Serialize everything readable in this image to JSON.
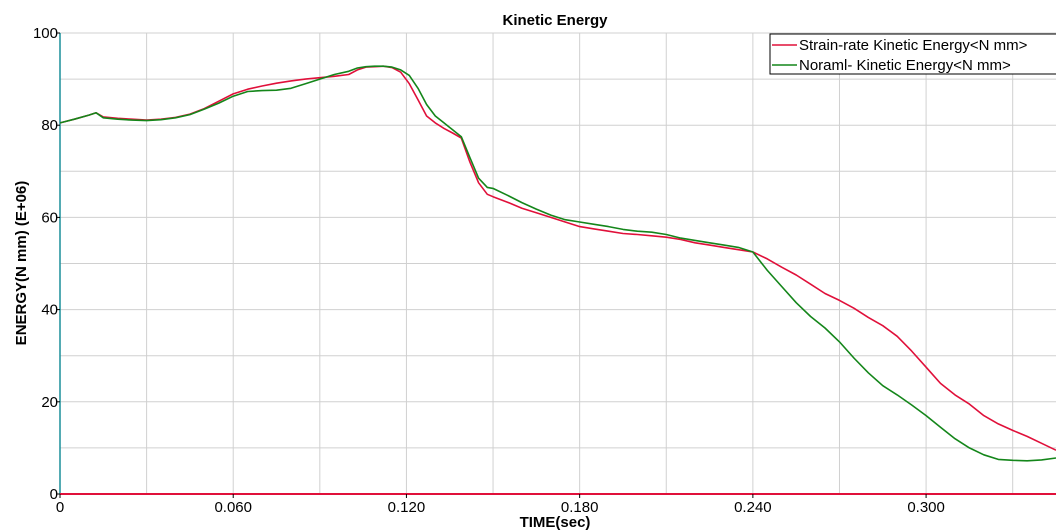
{
  "chart_data": {
    "type": "line",
    "title": "Kinetic Energy",
    "xlabel": "TIME(sec)",
    "ylabel": "ENERGY(N mm) (E+06)",
    "xlim": [
      0,
      0.345
    ],
    "ylim": [
      0,
      100
    ],
    "x_ticks": [
      0,
      0.06,
      0.12,
      0.18,
      0.24,
      0.3
    ],
    "x_tick_labels": [
      "0",
      "0.060",
      "0.120",
      "0.180",
      "0.240",
      "0.300"
    ],
    "y_ticks": [
      0,
      20,
      40,
      60,
      80,
      100
    ],
    "y_tick_labels": [
      "0",
      "20",
      "40",
      "60",
      "80",
      "100"
    ],
    "grid": true,
    "legend_position": "top-right",
    "series": [
      {
        "name": "Strain-rate Kinetic Energy<N mm>",
        "color": "#e0103a",
        "x": [
          0,
          0.005,
          0.01,
          0.0125,
          0.015,
          0.02,
          0.025,
          0.03,
          0.035,
          0.04,
          0.045,
          0.05,
          0.055,
          0.06,
          0.065,
          0.07,
          0.075,
          0.08,
          0.085,
          0.09,
          0.095,
          0.1,
          0.103,
          0.106,
          0.109,
          0.112,
          0.115,
          0.118,
          0.121,
          0.124,
          0.127,
          0.13,
          0.133,
          0.136,
          0.139,
          0.142,
          0.145,
          0.148,
          0.15,
          0.155,
          0.16,
          0.165,
          0.17,
          0.175,
          0.18,
          0.185,
          0.19,
          0.195,
          0.2,
          0.205,
          0.21,
          0.215,
          0.22,
          0.225,
          0.23,
          0.235,
          0.24,
          0.245,
          0.25,
          0.255,
          0.26,
          0.265,
          0.27,
          0.275,
          0.28,
          0.285,
          0.29,
          0.295,
          0.3,
          0.305,
          0.31,
          0.315,
          0.32,
          0.325,
          0.33,
          0.335,
          0.34,
          0.345
        ],
        "values": [
          80.5,
          81.3,
          82.2,
          82.7,
          81.8,
          81.5,
          81.3,
          81.1,
          81.3,
          81.7,
          82.4,
          83.6,
          85.2,
          86.8,
          87.8,
          88.5,
          89.1,
          89.6,
          90.0,
          90.3,
          90.6,
          91.0,
          92.0,
          92.6,
          92.7,
          92.8,
          92.5,
          91.5,
          89.0,
          85.5,
          82.0,
          80.5,
          79.3,
          78.3,
          77.2,
          72.0,
          67.5,
          65.0,
          64.5,
          63.3,
          62.0,
          61.0,
          60.0,
          59.0,
          58.0,
          57.5,
          57.0,
          56.5,
          56.3,
          56.0,
          55.7,
          55.2,
          54.5,
          54.0,
          53.5,
          53.0,
          52.5,
          51.0,
          49.2,
          47.5,
          45.5,
          43.5,
          42.0,
          40.3,
          38.3,
          36.5,
          34.2,
          31.0,
          27.5,
          24.0,
          21.5,
          19.5,
          17.0,
          15.2,
          13.8,
          12.5,
          11.0,
          9.5
        ]
      },
      {
        "name": "Noraml- Kinetic Energy<N mm>",
        "color": "#14861a",
        "x": [
          0,
          0.005,
          0.01,
          0.0125,
          0.015,
          0.02,
          0.025,
          0.03,
          0.035,
          0.04,
          0.045,
          0.05,
          0.055,
          0.06,
          0.065,
          0.07,
          0.075,
          0.08,
          0.085,
          0.09,
          0.095,
          0.1,
          0.103,
          0.106,
          0.109,
          0.112,
          0.115,
          0.118,
          0.121,
          0.124,
          0.127,
          0.13,
          0.133,
          0.136,
          0.139,
          0.142,
          0.145,
          0.148,
          0.15,
          0.155,
          0.16,
          0.165,
          0.17,
          0.175,
          0.18,
          0.185,
          0.19,
          0.195,
          0.2,
          0.205,
          0.21,
          0.215,
          0.22,
          0.225,
          0.23,
          0.235,
          0.24,
          0.245,
          0.25,
          0.255,
          0.26,
          0.265,
          0.27,
          0.275,
          0.28,
          0.285,
          0.29,
          0.295,
          0.3,
          0.305,
          0.31,
          0.315,
          0.32,
          0.325,
          0.33,
          0.335,
          0.34,
          0.345
        ],
        "values": [
          80.5,
          81.3,
          82.2,
          82.7,
          81.6,
          81.3,
          81.1,
          81.0,
          81.2,
          81.6,
          82.3,
          83.5,
          84.8,
          86.3,
          87.3,
          87.5,
          87.6,
          88.0,
          89.0,
          90.0,
          91.0,
          91.7,
          92.4,
          92.7,
          92.8,
          92.8,
          92.6,
          92.0,
          90.8,
          88.0,
          84.5,
          82.0,
          80.5,
          79.0,
          77.5,
          73.0,
          68.5,
          66.5,
          66.3,
          64.8,
          63.2,
          61.8,
          60.5,
          59.5,
          59.0,
          58.5,
          58.0,
          57.4,
          57.0,
          56.8,
          56.3,
          55.5,
          55.0,
          54.5,
          54.0,
          53.5,
          52.5,
          48.5,
          45.0,
          41.5,
          38.5,
          36.0,
          33.0,
          29.5,
          26.3,
          23.5,
          21.5,
          19.3,
          17.0,
          14.5,
          12.0,
          10.0,
          8.5,
          7.5,
          7.3,
          7.2,
          7.4,
          7.8
        ]
      }
    ]
  }
}
